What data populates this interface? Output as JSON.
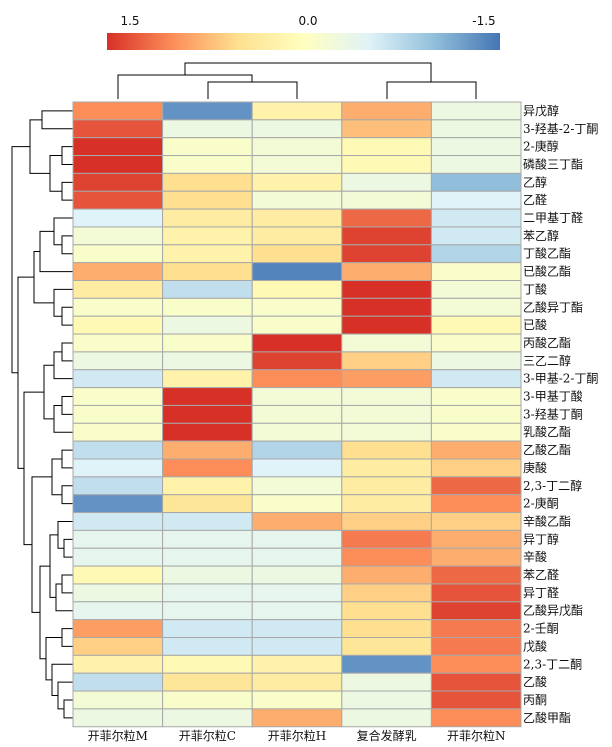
{
  "chart_data": {
    "type": "heatmap",
    "color_scale": {
      "tick_labels": [
        "1.5",
        "0.0",
        "-1.5"
      ],
      "range": [
        1.5,
        -1.5
      ],
      "colors": [
        "#d73027",
        "#fc8d59",
        "#fee090",
        "#ffffbf",
        "#e0f3f8",
        "#91bfdb",
        "#4575b4"
      ]
    },
    "columns": [
      "开菲尔粒M",
      "开菲尔粒C",
      "开菲尔粒H",
      "复合发酵乳",
      "开菲尔粒N"
    ],
    "rows": [
      "异戊醇",
      "3-羟基-2-丁酮",
      "2-庚醇",
      "磷酸三丁酯",
      "乙醇",
      "乙醛",
      "二甲基丁醛",
      "苯乙醇",
      "丁酸乙酯",
      "已酸乙酯",
      "丁酸",
      "乙酸异丁酯",
      "已酸",
      "丙酸乙酯",
      "三乙二醇",
      "3-甲基-2-丁酮",
      "3-甲基丁酸",
      "3-羟基丁酮",
      "乳酸乙酯",
      "乙酸乙酯",
      "庚酸",
      "2,3-丁二醇",
      "2-庚酮",
      "辛酸乙酯",
      "异丁醇",
      "辛酸",
      "苯乙醛",
      "异丁醛",
      "乙酸异戊酯",
      "2-壬酮",
      "戊酸",
      "2,3-丁二酮",
      "乙酸",
      "丙酮",
      "乙酸甲酯"
    ],
    "values": [
      [
        1.0,
        -1.3,
        0.2,
        0.8,
        -0.3
      ],
      [
        1.3,
        -0.3,
        -0.3,
        0.7,
        -0.3
      ],
      [
        1.6,
        -0.1,
        -0.2,
        0.1,
        -0.3
      ],
      [
        1.6,
        -0.1,
        -0.2,
        0.1,
        -0.3
      ],
      [
        1.4,
        0.5,
        0.2,
        -0.3,
        -1.0
      ],
      [
        1.3,
        0.5,
        -0.2,
        -0.2,
        -0.5
      ],
      [
        -0.5,
        0.3,
        0.3,
        1.2,
        -0.6
      ],
      [
        -0.2,
        0.2,
        0.3,
        1.4,
        -0.6
      ],
      [
        -0.1,
        0.2,
        0.5,
        1.4,
        -0.8
      ],
      [
        0.8,
        0.5,
        -1.4,
        0.8,
        -0.1
      ],
      [
        0.3,
        -0.7,
        0.1,
        1.5,
        -0.2
      ],
      [
        -0.1,
        -0.1,
        -0.1,
        1.6,
        -0.2
      ],
      [
        0.1,
        -0.3,
        -0.1,
        1.5,
        0.1
      ],
      [
        -0.1,
        -0.1,
        1.6,
        -0.2,
        -0.1
      ],
      [
        -0.3,
        -0.3,
        1.4,
        0.6,
        -0.3
      ],
      [
        -0.6,
        0.2,
        1.0,
        0.9,
        -0.6
      ],
      [
        -0.1,
        1.6,
        -0.2,
        -0.2,
        -0.1
      ],
      [
        -0.1,
        1.6,
        -0.2,
        -0.2,
        -0.1
      ],
      [
        -0.1,
        1.6,
        -0.2,
        -0.2,
        -0.1
      ],
      [
        -0.7,
        0.8,
        -0.8,
        0.5,
        0.8
      ],
      [
        -0.5,
        1.0,
        -0.5,
        0.3,
        0.6
      ],
      [
        -0.7,
        0.2,
        -0.2,
        0.3,
        1.2
      ],
      [
        -1.3,
        0.4,
        -0.1,
        0.3,
        1.0
      ],
      [
        -0.6,
        -0.6,
        0.8,
        0.6,
        0.6
      ],
      [
        -0.4,
        -0.4,
        -0.4,
        1.1,
        0.8
      ],
      [
        -0.4,
        -0.4,
        -0.4,
        1.0,
        0.8
      ],
      [
        0.1,
        -0.3,
        -0.3,
        0.8,
        1.2
      ],
      [
        -0.3,
        -0.4,
        -0.4,
        0.6,
        1.3
      ],
      [
        -0.4,
        -0.4,
        -0.4,
        0.5,
        1.4
      ],
      [
        0.9,
        -0.6,
        -0.6,
        0.5,
        1.1
      ],
      [
        0.6,
        -0.6,
        -0.6,
        0.4,
        1.1
      ],
      [
        0.2,
        0.1,
        0.2,
        -1.3,
        1.0
      ],
      [
        -0.7,
        0.4,
        0.3,
        -0.3,
        1.3
      ],
      [
        -0.2,
        -0.1,
        -0.1,
        -0.3,
        1.3
      ],
      [
        -0.3,
        -0.3,
        0.8,
        -0.3,
        1.0
      ]
    ]
  }
}
